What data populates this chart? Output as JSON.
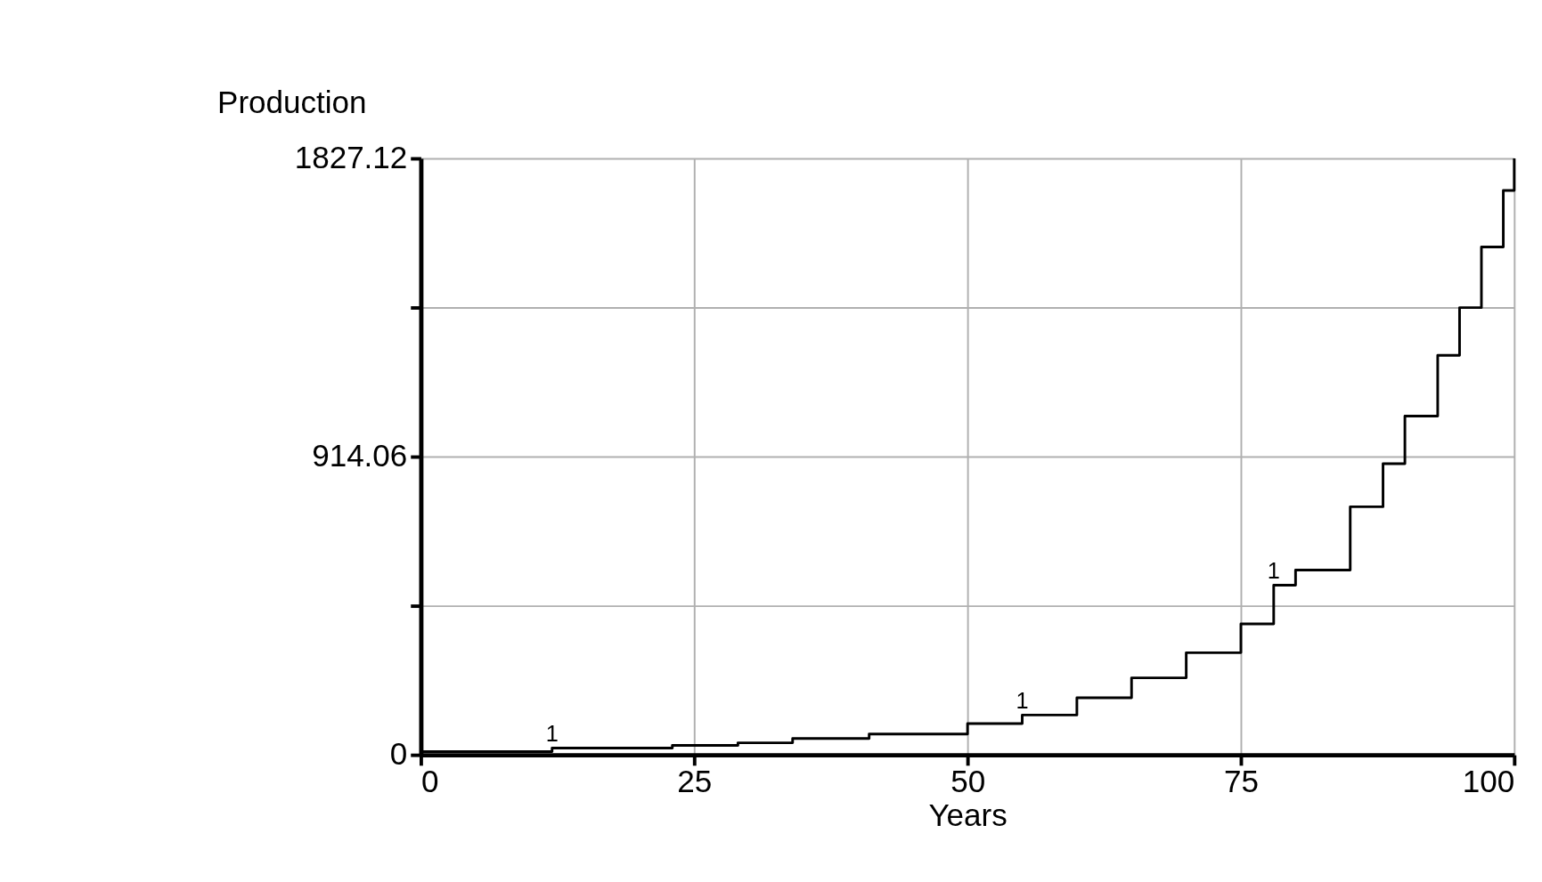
{
  "chart_data": {
    "type": "step",
    "ylabel": "Production",
    "xlabel": "Years",
    "x": [
      0,
      12,
      23,
      29,
      34,
      41,
      50,
      55,
      60,
      65,
      70,
      75,
      78,
      80,
      85,
      88,
      90,
      93,
      95,
      97,
      99,
      100
    ],
    "series": [
      {
        "name": "1",
        "color": "#000000",
        "values": [
          10,
          21,
          29,
          37,
          50,
          64,
          96,
          122,
          175,
          236,
          313,
          401,
          520,
          566,
          760,
          892,
          1038,
          1224,
          1370,
          1556,
          1729,
          1827
        ]
      }
    ],
    "xlim": [
      0,
      100
    ],
    "xticks": [
      0,
      25,
      50,
      75,
      100
    ],
    "ylim": [
      0,
      1827.12
    ],
    "yticks": [
      0,
      {
        "value": 456.78,
        "label": null
      },
      914.06,
      {
        "value": 1370.34,
        "label": null
      },
      1827.12
    ],
    "grid": true,
    "line_style": "solid"
  }
}
